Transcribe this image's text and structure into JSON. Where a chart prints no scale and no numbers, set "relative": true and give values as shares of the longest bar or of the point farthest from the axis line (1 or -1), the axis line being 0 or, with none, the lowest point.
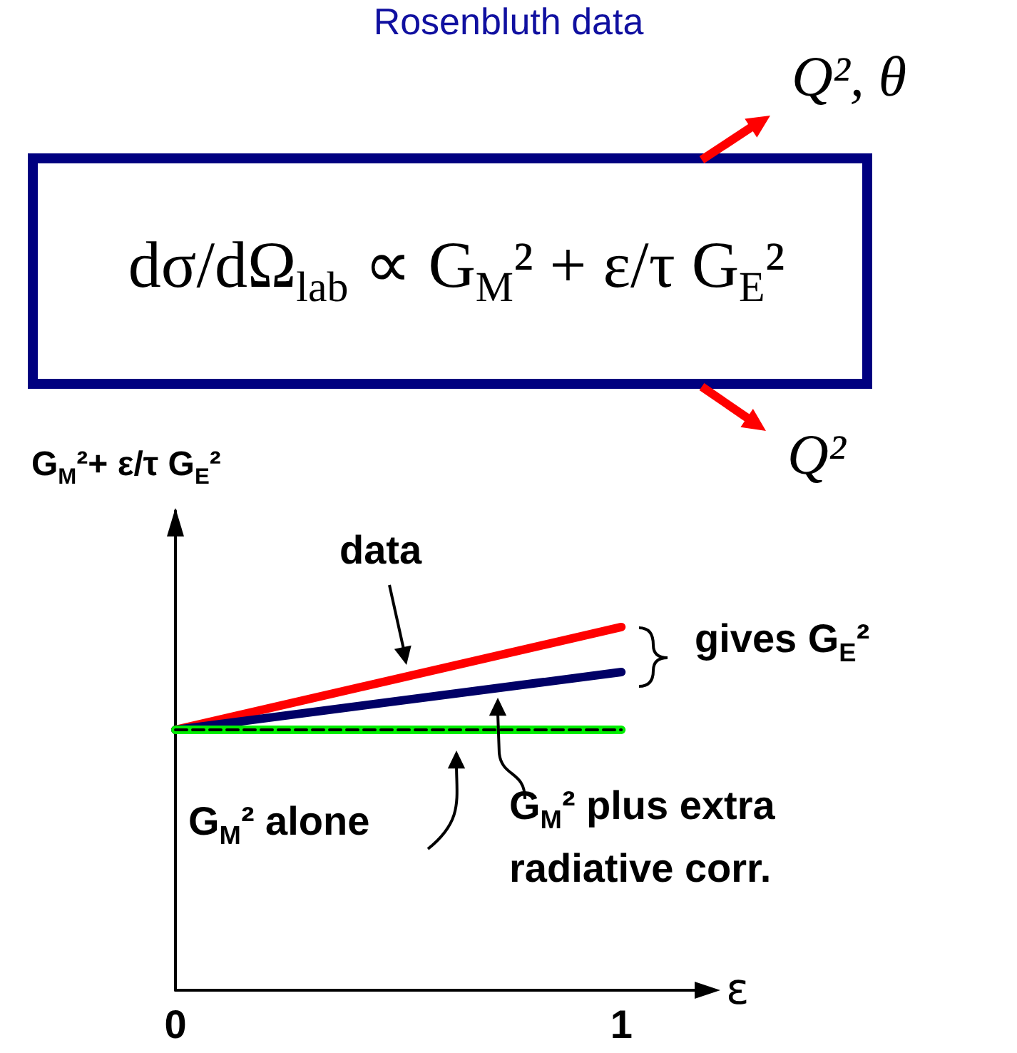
{
  "chart_data": {
    "type": "line",
    "title": "Rosenbluth data",
    "xlabel": "ε",
    "ylabel": "G$_{M}$²+ ε/τ G$_{E}$²",
    "annotations": [
      "dσ/dΩ$_{lab}$ ∝ G$_{M}$² + ε/τ G$_{E}$²",
      "Q², θ",
      "Q²",
      "data",
      "gives G$_{E}$²",
      "G$_{M}$² alone",
      "G$_{M}$² plus extra radiative corr."
    ],
    "x": [
      0,
      1
    ],
    "xlim": [
      0,
      1.19
    ],
    "xticks": [
      0,
      1
    ],
    "relative": true,
    "marker": "none",
    "series": [
      {
        "color": "#ff0000",
        "values": [
          0.717,
          1
        ]
      },
      {
        "color": "#000066",
        "values": [
          0.717,
          0.876
        ]
      },
      {
        "color": "#00ee00",
        "values": [
          0.717,
          0.717
        ]
      },
      {
        "color": "#000000",
        "values": [
          0.717,
          0.717
        ],
        "line_style": "dashed"
      }
    ]
  }
}
